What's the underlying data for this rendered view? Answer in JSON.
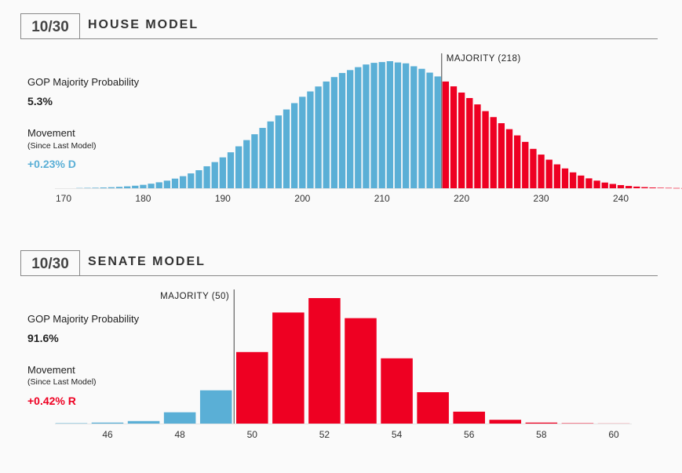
{
  "house": {
    "date": "10/30",
    "title": "HOUSE MODEL",
    "prob_label": "GOP Majority Probability",
    "prob_value": "5.3%",
    "movement_label": "Movement",
    "movement_sub": "(Since Last Model)",
    "movement_value": "+0.23% D",
    "majority_label": "MAJORITY (218)"
  },
  "senate": {
    "date": "10/30",
    "title": "SENATE MODEL",
    "prob_label": "GOP Majority Probability",
    "prob_value": "91.6%",
    "movement_label": "Movement",
    "movement_sub": "(Since Last Model)",
    "movement_value": "+0.42% R",
    "majority_label": "MAJORITY (50)"
  },
  "colors": {
    "dem": "#5aafd6",
    "rep": "#ee0022"
  },
  "chart_data": [
    {
      "type": "bar",
      "title": "",
      "x_start": 172,
      "x_ticks": [
        170,
        180,
        190,
        200,
        210,
        220,
        230,
        240
      ],
      "xlim": [
        170,
        240
      ],
      "ylim": [
        0,
        100
      ],
      "majority": 218,
      "values": [
        0.2,
        0.3,
        0.4,
        0.6,
        0.8,
        1.1,
        1.5,
        2.0,
        2.7,
        3.6,
        4.7,
        6.0,
        7.6,
        9.5,
        11.7,
        14.2,
        17.3,
        20.6,
        24.3,
        28.3,
        33.0,
        37.9,
        42.5,
        47.5,
        52.6,
        57.3,
        62.0,
        67.0,
        72.0,
        76.2,
        80.1,
        84.0,
        87.5,
        90.7,
        93.0,
        95.3,
        97.4,
        98.7,
        99.3,
        100,
        99.0,
        98.3,
        96.0,
        94.0,
        91.0,
        88.0,
        84.0,
        80.2,
        75.3,
        71.0,
        66.0,
        60.7,
        56.0,
        51.2,
        46.5,
        41.6,
        36.5,
        31.0,
        26.5,
        22.5,
        18.8,
        15.6,
        12.5,
        10.0,
        7.8,
        6.0,
        4.5,
        3.4,
        2.5,
        1.8,
        1.3,
        0.9,
        0.6,
        0.4,
        0.3,
        0.2,
        0.1,
        0.08,
        0.05,
        0.03
      ]
    },
    {
      "type": "bar",
      "title": "",
      "categories": [
        45,
        46,
        47,
        48,
        49,
        50,
        51,
        52,
        53,
        54,
        55,
        56,
        57,
        58,
        59,
        60
      ],
      "x_ticks": [
        46,
        48,
        50,
        52,
        54,
        56,
        58,
        60
      ],
      "xlim": [
        44.7,
        61
      ],
      "ylim": [
        0,
        100
      ],
      "majority": 50,
      "values": [
        0.3,
        0.8,
        2.0,
        9.0,
        26.5,
        57.0,
        88.5,
        100,
        84.0,
        52.0,
        25.0,
        9.5,
        3.0,
        0.8,
        0.3,
        0.1
      ]
    }
  ]
}
